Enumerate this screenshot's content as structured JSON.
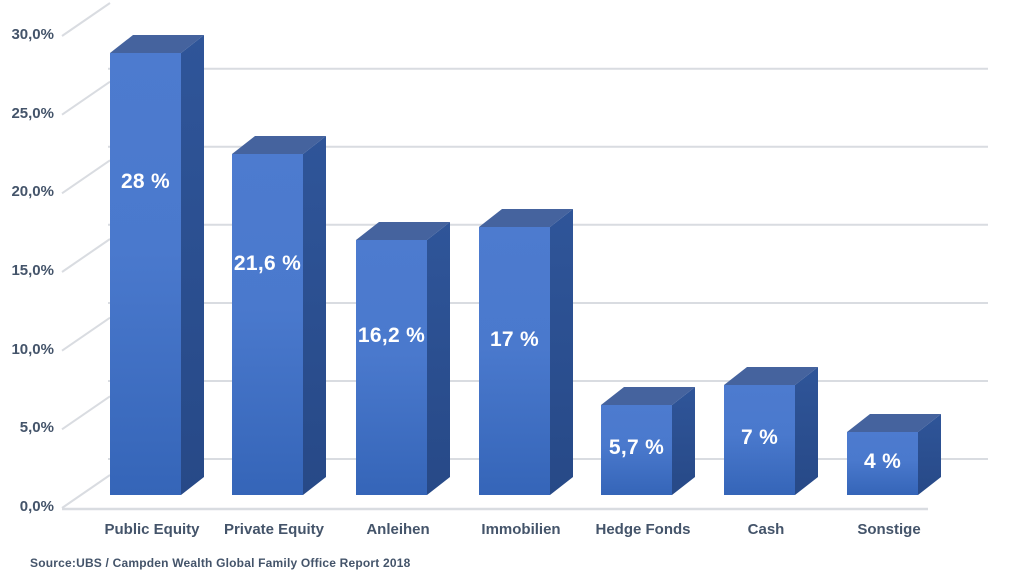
{
  "chart_data": {
    "type": "bar",
    "style": "3d-clustered-column",
    "title": "",
    "xlabel": "",
    "ylabel": "",
    "categories": [
      "Public Equity",
      "Private Equity",
      "Anleihen",
      "Immobilien",
      "Hedge Fonds",
      "Cash",
      "Sonstige"
    ],
    "values": [
      28,
      21.6,
      16.2,
      17,
      5.7,
      7,
      4
    ],
    "value_labels": [
      "28 %",
      "21,6 %",
      "16,2 %",
      "17 %",
      "5,7 %",
      "7 %",
      "4 %"
    ],
    "y_axis": {
      "min": 0,
      "max": 30,
      "step": 5,
      "unit": "%",
      "tick_labels": [
        "0,0%",
        "5,0%",
        "10,0%",
        "15,0%",
        "20,0%",
        "25,0%",
        "30,0%"
      ]
    },
    "ylim": [
      0,
      30
    ],
    "grid": true,
    "legend": false
  },
  "footer": {
    "source": "Source:UBS / Campden Wealth Global Family Office Report 2018"
  },
  "colors": {
    "background": "#ffffff",
    "bar_front_top": "#4d7bcf",
    "bar_front_mid": "#4a79cd",
    "bar_front_bottom": "#3565b8",
    "bar_top_face": "#45639e",
    "bar_side_top": "#2f5599",
    "bar_side_bottom": "#274987",
    "gridline": "#d9dce1",
    "text": "#44546a",
    "value_label_text": "#ffffff"
  }
}
